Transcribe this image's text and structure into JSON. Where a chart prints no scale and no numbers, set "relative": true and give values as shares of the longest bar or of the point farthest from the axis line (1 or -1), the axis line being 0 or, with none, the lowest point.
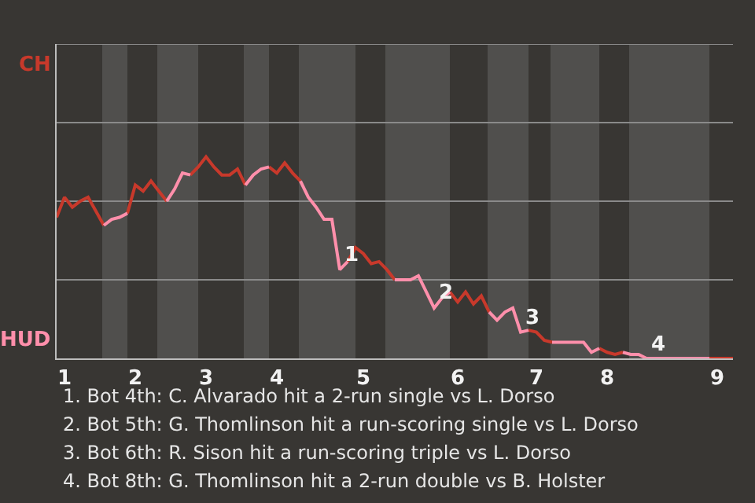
{
  "chart_data": {
    "type": "line",
    "relative": true,
    "categories": [
      null,
      "1",
      null,
      null,
      null,
      null,
      null,
      null,
      null,
      null,
      "2",
      null,
      null,
      null,
      null,
      null,
      null,
      null,
      null,
      "3",
      null,
      null,
      null,
      null,
      null,
      null,
      null,
      null,
      "4",
      null,
      null,
      null,
      null,
      null,
      null,
      null,
      null,
      null,
      null,
      "5",
      null,
      null,
      null,
      null,
      null,
      null,
      null,
      null,
      null,
      null,
      null,
      "6",
      null,
      null,
      null,
      null,
      null,
      null,
      null,
      null,
      null,
      "7",
      null,
      null,
      null,
      null,
      null,
      null,
      null,
      null,
      "8",
      null,
      null,
      null,
      null,
      null,
      null,
      null,
      null,
      null,
      null,
      null,
      null,
      null,
      "9",
      null,
      null
    ],
    "series": [
      {
        "color": "#c8392b",
        "values": [
          0.7,
          0.8,
          0.75,
          0.78,
          0.8,
          0.73,
          0.66,
          null,
          null,
          0.72,
          0.86,
          0.83,
          0.88,
          0.83,
          0.78,
          null,
          null,
          0.91,
          0.95,
          1,
          0.95,
          0.91,
          0.91,
          0.94,
          0.86,
          null,
          null,
          0.95,
          0.92,
          0.97,
          0.92,
          0.88,
          null,
          null,
          null,
          null,
          null,
          0.48,
          0.55,
          0.52,
          0.47,
          0.48,
          0.44,
          0.39,
          null,
          null,
          null,
          null,
          null,
          null,
          0.33,
          0.28,
          0.33,
          0.27,
          0.31,
          0.23,
          null,
          null,
          null,
          null,
          0.14,
          0.13,
          0.09,
          0.08,
          null,
          null,
          null,
          null,
          null,
          0.05,
          0.03,
          0.02,
          0.03,
          null,
          null,
          null,
          null,
          null,
          null,
          null,
          null,
          null,
          null,
          0,
          0,
          0,
          0
        ]
      },
      {
        "color": "#ff8fab",
        "values": [
          null,
          null,
          null,
          null,
          null,
          null,
          0.66,
          0.69,
          0.7,
          0.72,
          null,
          null,
          null,
          null,
          0.78,
          0.84,
          0.92,
          0.91,
          null,
          null,
          null,
          null,
          null,
          null,
          0.86,
          0.91,
          0.94,
          0.95,
          null,
          null,
          null,
          0.88,
          0.8,
          0.75,
          0.69,
          0.69,
          0.44,
          0.48,
          null,
          null,
          null,
          null,
          null,
          0.39,
          0.39,
          0.39,
          0.41,
          0.33,
          0.25,
          0.3,
          0.33,
          null,
          null,
          null,
          null,
          0.23,
          0.19,
          0.23,
          0.25,
          0.13,
          0.14,
          null,
          null,
          0.08,
          0.08,
          0.08,
          0.08,
          0.08,
          0.03,
          0.05,
          null,
          null,
          0.03,
          0.02,
          0.02,
          0,
          0,
          0,
          0,
          0,
          0,
          0,
          0,
          0,
          null,
          null,
          null
        ]
      }
    ],
    "ref_lines": [
      {
        "axis": "y",
        "value": 0.39,
        "color": "#8a8a8a"
      },
      {
        "axis": "y",
        "value": 0.78,
        "color": "#8a8a8a"
      },
      {
        "axis": "y",
        "value": 1.17,
        "color": "#8a8a8a"
      },
      {
        "axis": "y",
        "value": 1.56,
        "color": "#8a8a8a"
      }
    ],
    "legend": false,
    "marker": "none",
    "line_style": "solid",
    "annotations": [
      {
        "text": "1",
        "y": 0.44
      },
      {
        "text": "2",
        "y": 0.25
      },
      {
        "text": "3",
        "y": 0.13
      },
      {
        "text": "4",
        "y": 0
      },
      "CH",
      "HUD",
      "1. Bot 4th: C. Alvarado hit a 2-run single vs L. Dorso",
      "2. Bot 5th: G. Thomlinson hit a run-scoring single vs L. Dorso",
      "3. Bot 6th: R. Sison hit a run-scoring triple vs L. Dorso",
      "4. Bot 8th: G. Thomlinson hit a 2-run double vs B. Holster"
    ]
  }
}
